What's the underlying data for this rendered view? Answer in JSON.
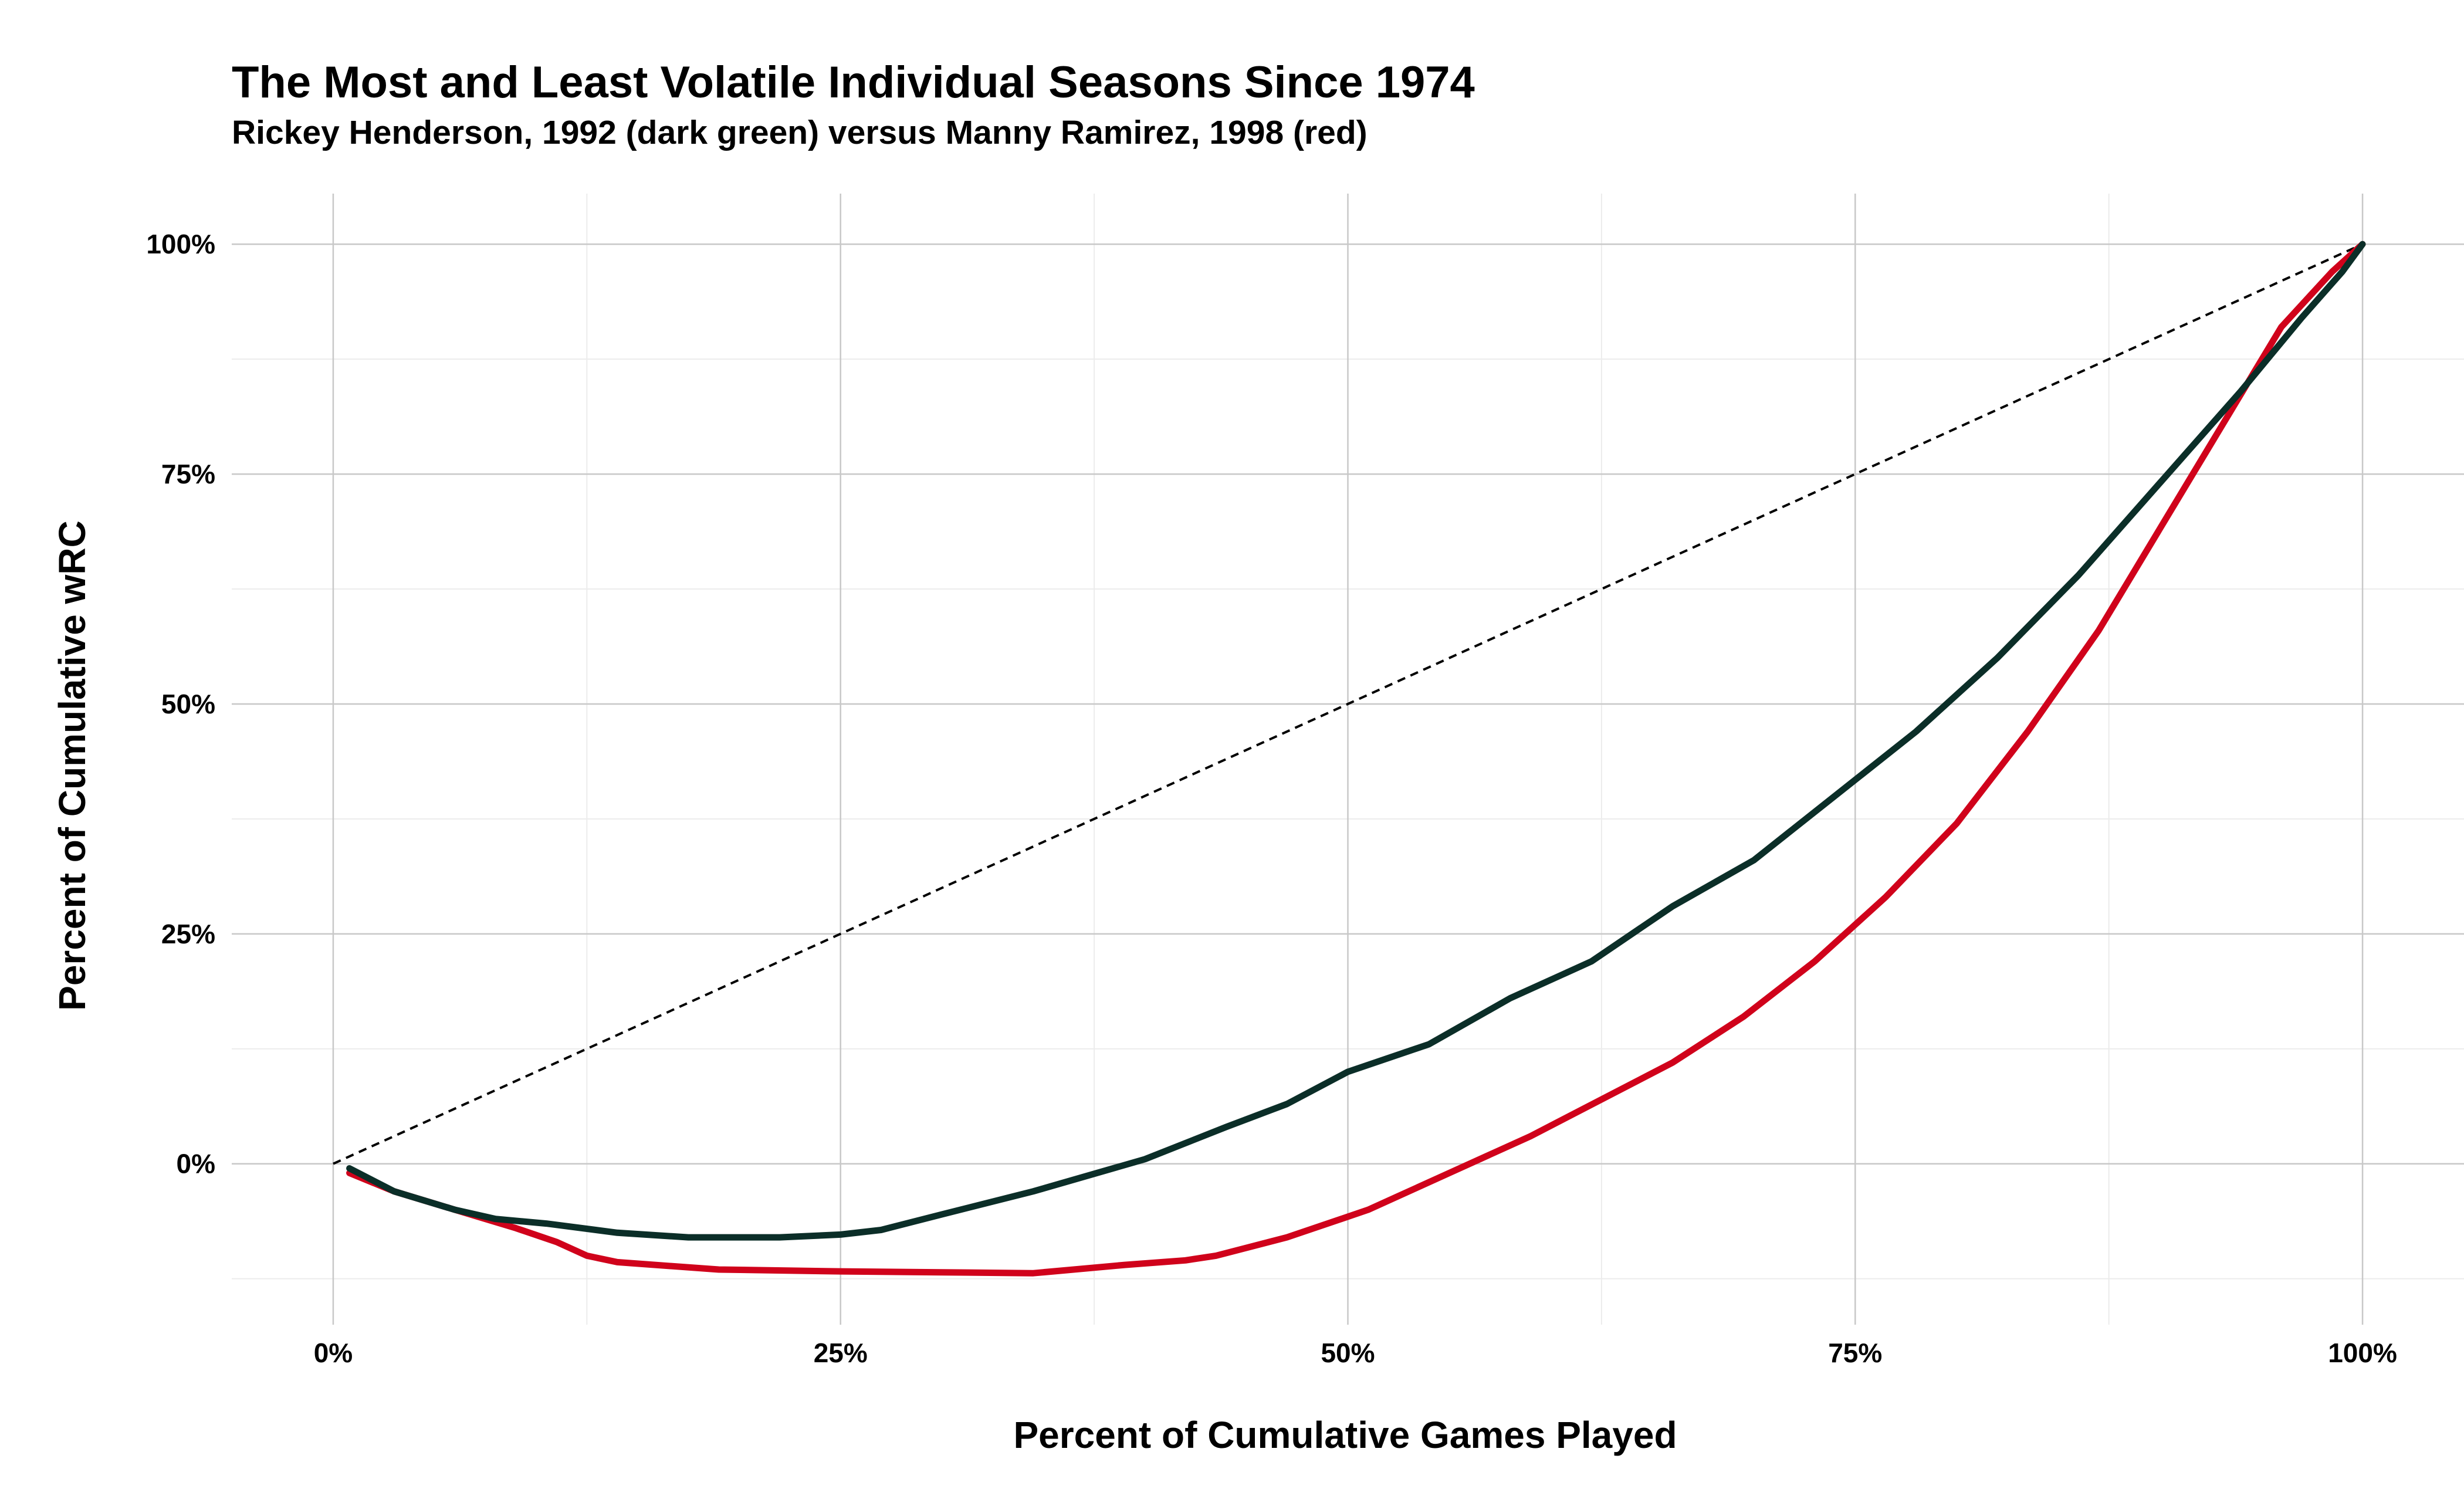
{
  "chart_data": {
    "type": "line",
    "title": "The Most and Least Volatile Individual Seasons Since 1974",
    "subtitle": "Rickey Henderson, 1992 (dark green) versus Manny Ramirez, 1998 (red)",
    "xlabel": "Percent of Cumulative Games Played",
    "ylabel": "Percent of Cumulative wRC",
    "xlim": [
      -0.05,
      1.05
    ],
    "ylim": [
      -0.175,
      1.055
    ],
    "x_ticks": [
      0,
      0.25,
      0.5,
      0.75,
      1.0
    ],
    "x_tick_labels": [
      "0%",
      "25%",
      "50%",
      "75%",
      "100%"
    ],
    "y_ticks": [
      0,
      0.25,
      0.5,
      0.75,
      1.0
    ],
    "y_tick_labels": [
      "0%",
      "25%",
      "50%",
      "75%",
      "100%"
    ],
    "grid": true,
    "reference_line": {
      "style": "dashed",
      "color": "#000000",
      "x": [
        0,
        1
      ],
      "y": [
        0,
        1
      ]
    },
    "series": [
      {
        "color": "#d0021b",
        "x": [
          0.008,
          0.03,
          0.06,
          0.09,
          0.11,
          0.125,
          0.14,
          0.19,
          0.25,
          0.3,
          0.345,
          0.39,
          0.42,
          0.435,
          0.47,
          0.51,
          0.55,
          0.59,
          0.625,
          0.66,
          0.695,
          0.73,
          0.765,
          0.8,
          0.835,
          0.87,
          0.9,
          0.93,
          0.96,
          0.985,
          1.0
        ],
        "y": [
          -0.01,
          -0.03,
          -0.05,
          -0.07,
          -0.085,
          -0.1,
          -0.107,
          -0.115,
          -0.117,
          -0.118,
          -0.119,
          -0.11,
          -0.105,
          -0.1,
          -0.08,
          -0.05,
          -0.01,
          0.03,
          0.07,
          0.11,
          0.16,
          0.22,
          0.29,
          0.37,
          0.47,
          0.58,
          0.69,
          0.8,
          0.91,
          0.97,
          1.0
        ]
      },
      {
        "color": "#0b2e28",
        "x": [
          0.008,
          0.03,
          0.06,
          0.08,
          0.105,
          0.14,
          0.175,
          0.22,
          0.25,
          0.27,
          0.3,
          0.345,
          0.4,
          0.44,
          0.47,
          0.5,
          0.54,
          0.58,
          0.62,
          0.66,
          0.7,
          0.74,
          0.78,
          0.82,
          0.86,
          0.9,
          0.94,
          0.97,
          0.99,
          1.0
        ],
        "y": [
          -0.005,
          -0.03,
          -0.05,
          -0.06,
          -0.065,
          -0.075,
          -0.08,
          -0.08,
          -0.077,
          -0.072,
          -0.055,
          -0.03,
          0.005,
          0.04,
          0.065,
          0.1,
          0.13,
          0.18,
          0.22,
          0.28,
          0.33,
          0.4,
          0.47,
          0.55,
          0.64,
          0.74,
          0.84,
          0.92,
          0.97,
          1.0
        ]
      }
    ]
  }
}
